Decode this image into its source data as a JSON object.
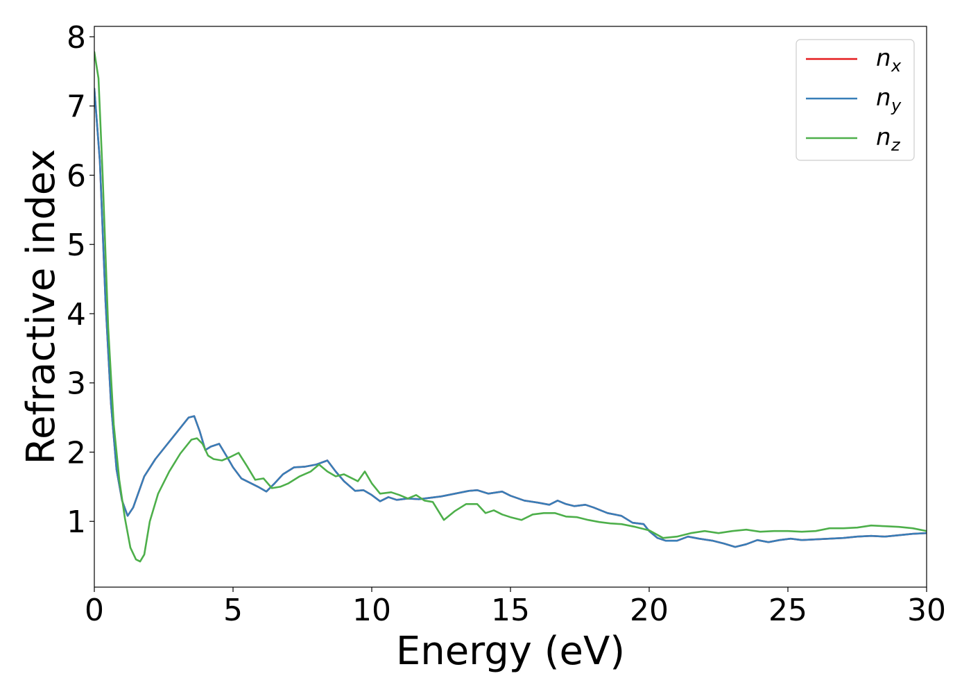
{
  "chart_data": {
    "type": "line",
    "xlabel": "Energy (eV)",
    "ylabel": "Refractive index",
    "xlim": [
      0,
      30
    ],
    "ylim": [
      0.05,
      8.15
    ],
    "xticks": [
      0,
      5,
      10,
      15,
      20,
      25,
      30
    ],
    "yticks": [
      1,
      2,
      3,
      4,
      5,
      6,
      7,
      8
    ],
    "grid": false,
    "legend_position": "top-right",
    "series": [
      {
        "name": "n_x",
        "legend_base": "n",
        "legend_sub": "x",
        "color": "#e41a1c",
        "x": [
          0.0,
          0.2,
          0.4,
          0.6,
          0.8,
          1.0,
          1.2,
          1.4,
          1.8,
          2.2,
          2.6,
          3.0,
          3.4,
          3.6,
          3.8,
          4.0,
          4.2,
          4.5,
          4.8,
          5.0,
          5.3,
          5.6,
          5.9,
          6.2,
          6.5,
          6.8,
          7.2,
          7.6,
          8.0,
          8.4,
          8.7,
          9.0,
          9.4,
          9.7,
          10.0,
          10.3,
          10.6,
          10.9,
          11.3,
          11.7,
          12.1,
          12.5,
          13.0,
          13.5,
          13.8,
          14.2,
          14.7,
          15.0,
          15.5,
          16.0,
          16.4,
          16.7,
          17.0,
          17.3,
          17.7,
          18.0,
          18.5,
          19.0,
          19.4,
          19.8,
          20.0,
          20.3,
          20.6,
          21.0,
          21.4,
          21.8,
          22.3,
          22.7,
          23.1,
          23.5,
          23.9,
          24.3,
          24.7,
          25.1,
          25.5,
          26.0,
          26.5,
          27.0,
          27.5,
          28.0,
          28.5,
          29.0,
          29.5,
          30.0
        ],
        "y": [
          7.25,
          6.2,
          4.2,
          2.7,
          1.75,
          1.3,
          1.08,
          1.2,
          1.65,
          1.9,
          2.1,
          2.3,
          2.5,
          2.52,
          2.3,
          2.03,
          2.08,
          2.12,
          1.92,
          1.78,
          1.62,
          1.56,
          1.5,
          1.43,
          1.55,
          1.68,
          1.78,
          1.79,
          1.82,
          1.88,
          1.72,
          1.58,
          1.44,
          1.45,
          1.38,
          1.29,
          1.35,
          1.31,
          1.33,
          1.32,
          1.34,
          1.36,
          1.4,
          1.44,
          1.45,
          1.4,
          1.43,
          1.37,
          1.3,
          1.27,
          1.24,
          1.3,
          1.25,
          1.22,
          1.24,
          1.2,
          1.12,
          1.08,
          0.98,
          0.96,
          0.86,
          0.76,
          0.72,
          0.72,
          0.78,
          0.75,
          0.72,
          0.68,
          0.63,
          0.67,
          0.73,
          0.7,
          0.73,
          0.75,
          0.73,
          0.74,
          0.75,
          0.76,
          0.78,
          0.79,
          0.78,
          0.8,
          0.82,
          0.83
        ]
      },
      {
        "name": "n_y",
        "legend_base": "n",
        "legend_sub": "y",
        "color": "#377eb8",
        "x": [
          0.0,
          0.2,
          0.4,
          0.6,
          0.8,
          1.0,
          1.2,
          1.4,
          1.8,
          2.2,
          2.6,
          3.0,
          3.4,
          3.6,
          3.8,
          4.0,
          4.2,
          4.5,
          4.8,
          5.0,
          5.3,
          5.6,
          5.9,
          6.2,
          6.5,
          6.8,
          7.2,
          7.6,
          8.0,
          8.4,
          8.7,
          9.0,
          9.4,
          9.7,
          10.0,
          10.3,
          10.6,
          10.9,
          11.3,
          11.7,
          12.1,
          12.5,
          13.0,
          13.5,
          13.8,
          14.2,
          14.7,
          15.0,
          15.5,
          16.0,
          16.4,
          16.7,
          17.0,
          17.3,
          17.7,
          18.0,
          18.5,
          19.0,
          19.4,
          19.8,
          20.0,
          20.3,
          20.6,
          21.0,
          21.4,
          21.8,
          22.3,
          22.7,
          23.1,
          23.5,
          23.9,
          24.3,
          24.7,
          25.1,
          25.5,
          26.0,
          26.5,
          27.0,
          27.5,
          28.0,
          28.5,
          29.0,
          29.5,
          30.0
        ],
        "y": [
          7.25,
          6.2,
          4.2,
          2.7,
          1.75,
          1.3,
          1.08,
          1.2,
          1.65,
          1.9,
          2.1,
          2.3,
          2.5,
          2.52,
          2.3,
          2.03,
          2.08,
          2.12,
          1.92,
          1.78,
          1.62,
          1.56,
          1.5,
          1.43,
          1.55,
          1.68,
          1.78,
          1.79,
          1.82,
          1.88,
          1.72,
          1.58,
          1.44,
          1.45,
          1.38,
          1.29,
          1.35,
          1.31,
          1.33,
          1.32,
          1.34,
          1.36,
          1.4,
          1.44,
          1.45,
          1.4,
          1.43,
          1.37,
          1.3,
          1.27,
          1.24,
          1.3,
          1.25,
          1.22,
          1.24,
          1.2,
          1.12,
          1.08,
          0.98,
          0.96,
          0.86,
          0.76,
          0.72,
          0.72,
          0.78,
          0.75,
          0.72,
          0.68,
          0.63,
          0.67,
          0.73,
          0.7,
          0.73,
          0.75,
          0.73,
          0.74,
          0.75,
          0.76,
          0.78,
          0.79,
          0.78,
          0.8,
          0.82,
          0.83
        ]
      },
      {
        "name": "n_z",
        "legend_base": "n",
        "legend_sub": "z",
        "color": "#4daf4a",
        "x": [
          0.0,
          0.15,
          0.3,
          0.5,
          0.7,
          0.9,
          1.1,
          1.3,
          1.5,
          1.65,
          1.8,
          2.0,
          2.3,
          2.7,
          3.1,
          3.5,
          3.7,
          3.9,
          4.1,
          4.3,
          4.6,
          4.9,
          5.2,
          5.5,
          5.8,
          6.1,
          6.4,
          6.7,
          7.0,
          7.4,
          7.8,
          8.1,
          8.4,
          8.7,
          9.0,
          9.3,
          9.5,
          9.75,
          10.0,
          10.3,
          10.7,
          11.0,
          11.3,
          11.6,
          11.9,
          12.2,
          12.6,
          13.0,
          13.4,
          13.8,
          14.1,
          14.4,
          14.7,
          15.0,
          15.4,
          15.8,
          16.2,
          16.6,
          17.0,
          17.4,
          17.8,
          18.2,
          18.6,
          19.0,
          19.5,
          20.0,
          20.5,
          21.0,
          21.5,
          22.0,
          22.5,
          23.0,
          23.5,
          24.0,
          24.5,
          25.0,
          25.5,
          26.0,
          26.5,
          27.0,
          27.5,
          28.0,
          28.5,
          29.0,
          29.5,
          30.0
        ],
        "y": [
          7.78,
          7.4,
          6.0,
          3.8,
          2.4,
          1.6,
          1.05,
          0.62,
          0.45,
          0.42,
          0.52,
          1.0,
          1.4,
          1.72,
          1.98,
          2.18,
          2.2,
          2.12,
          1.95,
          1.9,
          1.88,
          1.93,
          1.99,
          1.8,
          1.6,
          1.62,
          1.48,
          1.5,
          1.55,
          1.65,
          1.72,
          1.82,
          1.72,
          1.65,
          1.68,
          1.62,
          1.58,
          1.72,
          1.55,
          1.4,
          1.42,
          1.38,
          1.33,
          1.38,
          1.3,
          1.28,
          1.02,
          1.15,
          1.25,
          1.25,
          1.12,
          1.16,
          1.1,
          1.06,
          1.02,
          1.1,
          1.12,
          1.12,
          1.07,
          1.06,
          1.02,
          0.99,
          0.97,
          0.96,
          0.92,
          0.87,
          0.76,
          0.78,
          0.83,
          0.86,
          0.83,
          0.86,
          0.88,
          0.85,
          0.86,
          0.86,
          0.85,
          0.86,
          0.9,
          0.9,
          0.91,
          0.94,
          0.93,
          0.92,
          0.9,
          0.86
        ]
      }
    ]
  }
}
